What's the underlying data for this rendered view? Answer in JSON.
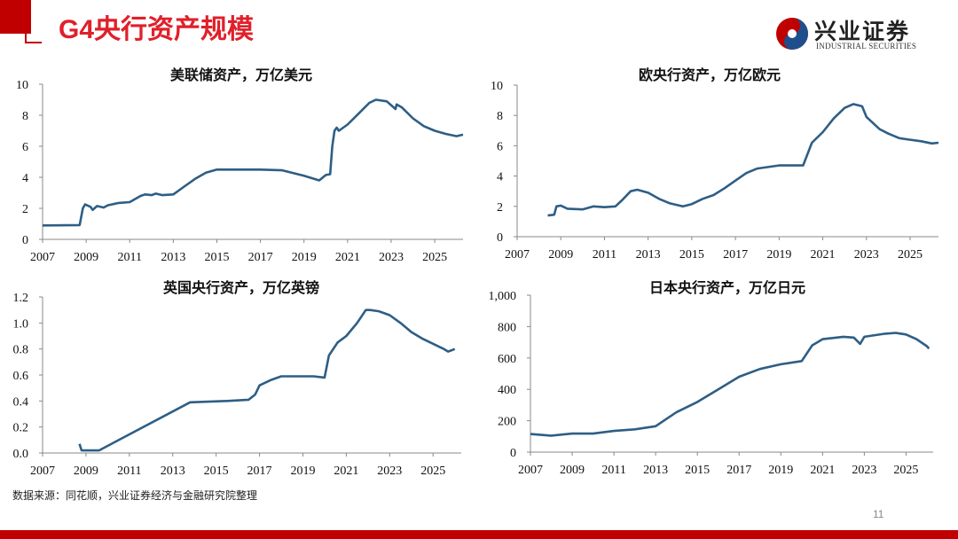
{
  "header": {
    "title": "G4央行资产规模"
  },
  "logo": {
    "cn": "兴业证券",
    "en": "INDUSTRIAL SECURITIES",
    "colors": [
      "#c00000",
      "#1f4e8c"
    ]
  },
  "line_color": "#2e5e85",
  "chart_data": [
    {
      "type": "line",
      "title": "美联储资产，万亿美元",
      "xlim": [
        2007,
        2026.3
      ],
      "ylim": [
        0,
        10
      ],
      "xticks": [
        "2007",
        "2009",
        "2011",
        "2013",
        "2015",
        "2017",
        "2019",
        "2021",
        "2023",
        "2025"
      ],
      "yticks": [
        "0",
        "2",
        "4",
        "6",
        "8",
        "10"
      ],
      "series": [
        {
          "points": [
            [
              2007,
              0.9
            ],
            [
              2008.7,
              0.92
            ],
            [
              2008.85,
              2.0
            ],
            [
              2008.95,
              2.25
            ],
            [
              2009.2,
              2.1
            ],
            [
              2009.3,
              1.9
            ],
            [
              2009.5,
              2.15
            ],
            [
              2009.8,
              2.05
            ],
            [
              2010,
              2.2
            ],
            [
              2010.5,
              2.35
            ],
            [
              2011,
              2.4
            ],
            [
              2011.5,
              2.8
            ],
            [
              2011.7,
              2.9
            ],
            [
              2012,
              2.85
            ],
            [
              2012.2,
              2.95
            ],
            [
              2012.5,
              2.85
            ],
            [
              2013,
              2.9
            ],
            [
              2013.5,
              3.4
            ],
            [
              2014,
              3.9
            ],
            [
              2014.5,
              4.3
            ],
            [
              2015,
              4.5
            ],
            [
              2017,
              4.5
            ],
            [
              2018,
              4.45
            ],
            [
              2019,
              4.1
            ],
            [
              2019.7,
              3.8
            ],
            [
              2020,
              4.15
            ],
            [
              2020.2,
              4.2
            ],
            [
              2020.3,
              6.0
            ],
            [
              2020.4,
              7.0
            ],
            [
              2020.5,
              7.2
            ],
            [
              2020.6,
              7.0
            ],
            [
              2021,
              7.4
            ],
            [
              2021.5,
              8.1
            ],
            [
              2022,
              8.8
            ],
            [
              2022.3,
              9.0
            ],
            [
              2022.8,
              8.9
            ],
            [
              2023.2,
              8.4
            ],
            [
              2023.25,
              8.7
            ],
            [
              2023.5,
              8.5
            ],
            [
              2024,
              7.8
            ],
            [
              2024.5,
              7.3
            ],
            [
              2025,
              7.0
            ],
            [
              2025.5,
              6.8
            ],
            [
              2026,
              6.65
            ],
            [
              2026.3,
              6.75
            ]
          ]
        }
      ]
    },
    {
      "type": "line",
      "title": "欧央行资产，万亿欧元",
      "xlim": [
        2007,
        2026.3
      ],
      "ylim": [
        0,
        10
      ],
      "xticks": [
        "2007",
        "2009",
        "2011",
        "2013",
        "2015",
        "2017",
        "2019",
        "2021",
        "2023",
        "2025"
      ],
      "yticks": [
        "0",
        "2",
        "4",
        "6",
        "8",
        "10"
      ],
      "series": [
        {
          "points": [
            [
              2008.4,
              1.4
            ],
            [
              2008.7,
              1.45
            ],
            [
              2008.8,
              2.0
            ],
            [
              2009,
              2.05
            ],
            [
              2009.3,
              1.85
            ],
            [
              2010,
              1.8
            ],
            [
              2010.5,
              2.0
            ],
            [
              2011,
              1.95
            ],
            [
              2011.5,
              2.0
            ],
            [
              2011.8,
              2.4
            ],
            [
              2012.2,
              3.0
            ],
            [
              2012.5,
              3.1
            ],
            [
              2013,
              2.9
            ],
            [
              2013.5,
              2.5
            ],
            [
              2014,
              2.2
            ],
            [
              2014.6,
              2.0
            ],
            [
              2015,
              2.15
            ],
            [
              2015.5,
              2.5
            ],
            [
              2016,
              2.75
            ],
            [
              2016.5,
              3.2
            ],
            [
              2017,
              3.7
            ],
            [
              2017.5,
              4.2
            ],
            [
              2018,
              4.5
            ],
            [
              2019,
              4.7
            ],
            [
              2020.1,
              4.7
            ],
            [
              2020.5,
              6.2
            ],
            [
              2021,
              6.9
            ],
            [
              2021.5,
              7.8
            ],
            [
              2022,
              8.5
            ],
            [
              2022.4,
              8.75
            ],
            [
              2022.8,
              8.6
            ],
            [
              2023,
              7.9
            ],
            [
              2023.3,
              7.5
            ],
            [
              2023.6,
              7.1
            ],
            [
              2024,
              6.8
            ],
            [
              2024.5,
              6.5
            ],
            [
              2025,
              6.4
            ],
            [
              2025.5,
              6.3
            ],
            [
              2026,
              6.15
            ],
            [
              2026.3,
              6.2
            ]
          ]
        }
      ]
    },
    {
      "type": "line",
      "title": "英国央行资产，万亿英镑",
      "xlim": [
        2007,
        2026.3
      ],
      "ylim": [
        0,
        1.2
      ],
      "xticks": [
        "2007",
        "2009",
        "2011",
        "2013",
        "2015",
        "2017",
        "2019",
        "2021",
        "2023",
        "2025"
      ],
      "yticks": [
        "0.0",
        "0.2",
        "0.4",
        "0.6",
        "0.8",
        "1.0",
        "1.2"
      ],
      "series": [
        {
          "points": [
            [
              2008.7,
              0.07
            ],
            [
              2008.8,
              0.02
            ],
            [
              2009.6,
              0.02
            ],
            [
              2013.8,
              0.39
            ],
            [
              2015.5,
              0.4
            ],
            [
              2016.5,
              0.41
            ],
            [
              2016.8,
              0.45
            ],
            [
              2017,
              0.52
            ],
            [
              2017.5,
              0.56
            ],
            [
              2018,
              0.59
            ],
            [
              2019.5,
              0.59
            ],
            [
              2020,
              0.58
            ],
            [
              2020.2,
              0.75
            ],
            [
              2020.6,
              0.85
            ],
            [
              2021,
              0.9
            ],
            [
              2021.5,
              1.0
            ],
            [
              2021.9,
              1.1
            ],
            [
              2022.1,
              1.1
            ],
            [
              2022.5,
              1.09
            ],
            [
              2023,
              1.06
            ],
            [
              2023.5,
              1.0
            ],
            [
              2024,
              0.93
            ],
            [
              2024.5,
              0.88
            ],
            [
              2025,
              0.84
            ],
            [
              2025.5,
              0.8
            ],
            [
              2025.7,
              0.78
            ],
            [
              2026,
              0.8
            ]
          ]
        }
      ]
    },
    {
      "type": "line",
      "title": "日本央行资产，万亿日元",
      "xlim": [
        2007,
        2026.3
      ],
      "ylim": [
        0,
        1000
      ],
      "xticks": [
        "2007",
        "2009",
        "2011",
        "2013",
        "2015",
        "2017",
        "2019",
        "2021",
        "2023",
        "2025"
      ],
      "yticks": [
        "0",
        "200",
        "400",
        "600",
        "800",
        "1,000"
      ],
      "series": [
        {
          "points": [
            [
              2007,
              115
            ],
            [
              2008,
              105
            ],
            [
              2009,
              118
            ],
            [
              2010,
              118
            ],
            [
              2011,
              135
            ],
            [
              2012,
              145
            ],
            [
              2013,
              165
            ],
            [
              2013.5,
              210
            ],
            [
              2014,
              255
            ],
            [
              2015,
              320
            ],
            [
              2016,
              400
            ],
            [
              2017,
              480
            ],
            [
              2018,
              530
            ],
            [
              2019,
              560
            ],
            [
              2020,
              580
            ],
            [
              2020.5,
              680
            ],
            [
              2021,
              720
            ],
            [
              2022,
              735
            ],
            [
              2022.5,
              730
            ],
            [
              2022.8,
              690
            ],
            [
              2023,
              735
            ],
            [
              2024,
              755
            ],
            [
              2024.5,
              760
            ],
            [
              2025,
              750
            ],
            [
              2025.5,
              720
            ],
            [
              2026,
              675
            ],
            [
              2026.1,
              660
            ]
          ]
        }
      ]
    }
  ],
  "footer": {
    "source": "数据来源：同花顺，兴业证券经济与金融研究院整理",
    "page": "11"
  }
}
